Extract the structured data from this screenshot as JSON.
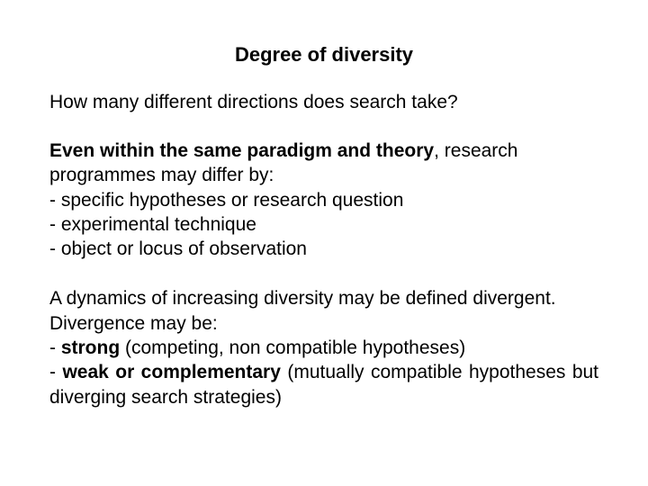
{
  "title": "Degree of diversity",
  "question": "How many different directions does search take?",
  "para1": {
    "bold_lead": "Even within the same paradigm and theory",
    "lead_remainder": ", research programmes may differ by:",
    "bullets": [
      "- specific hypotheses or research question",
      "- experimental technique",
      "- object or locus of observation"
    ]
  },
  "para2": {
    "line1": "A dynamics of increasing diversity may be defined divergent.",
    "line2": "Divergence may be:",
    "strong_label": "strong",
    "strong_desc": " (competing, non compatible hypotheses)",
    "weak_label": "weak or complementary",
    "weak_desc": " (mutually compatible hypotheses but diverging search strategies)"
  },
  "styling": {
    "background_color": "#ffffff",
    "text_color": "#000000",
    "title_fontsize": 22,
    "body_fontsize": 21,
    "font_family": "Arial"
  }
}
